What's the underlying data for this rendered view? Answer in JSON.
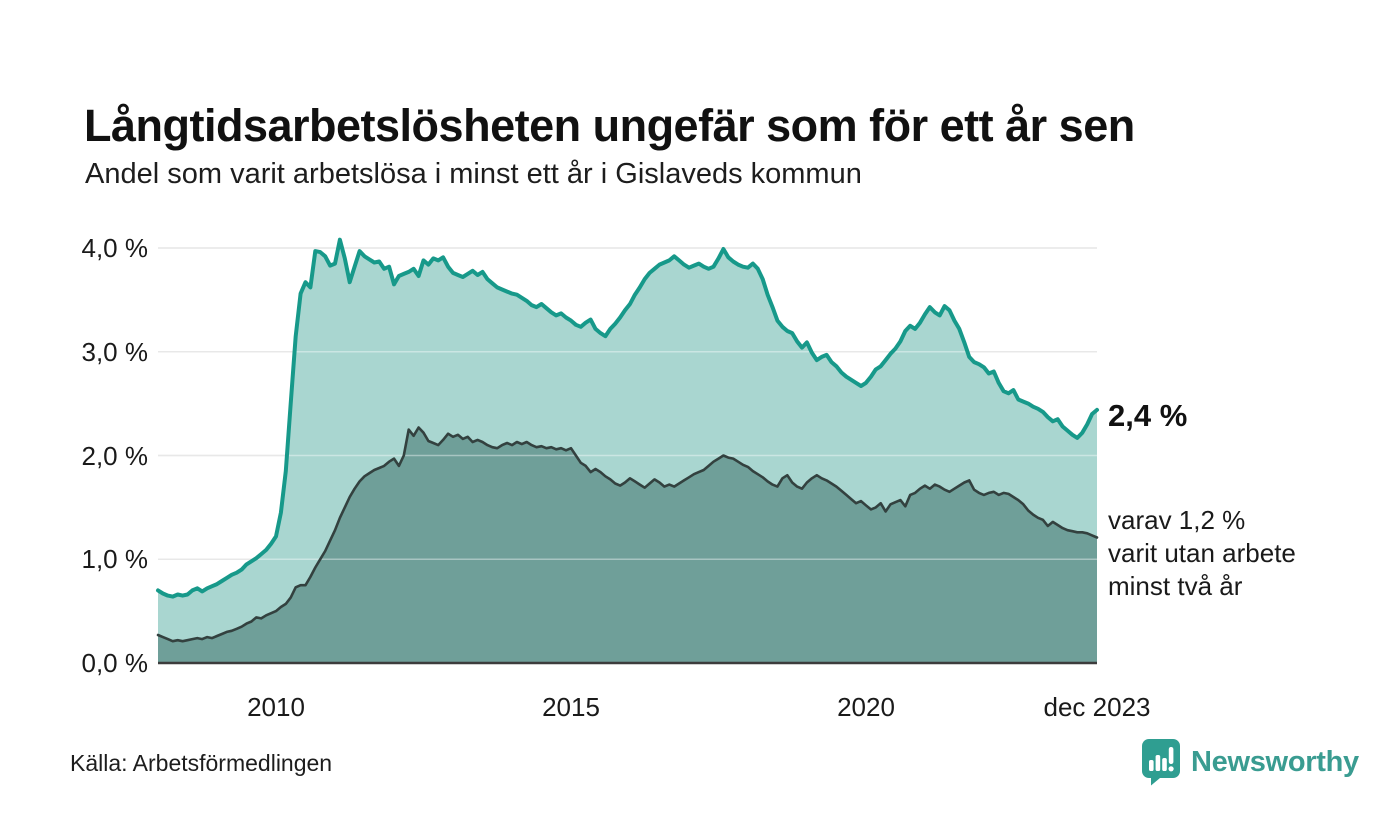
{
  "header": {
    "title": "Långtidsarbetslösheten ungefär som för ett år sen",
    "subtitle": "Andel som varit arbetslösa i minst ett år i Gislaveds kommun"
  },
  "annotations": {
    "end_value": "2,4 %",
    "sub_line1": "varav 1,2 %",
    "sub_line2": "varit utan arbete",
    "sub_line3": "minst två år"
  },
  "footer": {
    "source": "Källa: Arbetsförmedlingen",
    "logo_text": "Newsworthy",
    "logo_color": "#2f9e91"
  },
  "chart_data": {
    "type": "area",
    "title": "Långtidsarbetslösheten ungefär som för ett år sen",
    "subtitle": "Andel som varit arbetslösa i minst ett år i Gislaveds kommun",
    "unit": "%",
    "x_start_year": 2008,
    "points_per_year": 12,
    "x_end_label": "dec 2023",
    "ylim": [
      0,
      4.3
    ],
    "grid": true,
    "colors": {
      "line_one_year": "#17998a",
      "fill_one_year": "#a9d6d0",
      "line_two_years": "#33413f",
      "fill_two_years": "#6f9f99",
      "gridline": "#d9d9d9",
      "axis": "#3c3c3c"
    },
    "y_ticks": [
      {
        "label": "0,0 %",
        "value": 0
      },
      {
        "label": "1,0 %",
        "value": 1
      },
      {
        "label": "2,0 %",
        "value": 2
      },
      {
        "label": "3,0 %",
        "value": 3
      },
      {
        "label": "4,0 %",
        "value": 4
      }
    ],
    "x_ticks": [
      {
        "label": "2010",
        "year": 2010
      },
      {
        "label": "2015",
        "year": 2015
      },
      {
        "label": "2020",
        "year": 2020
      },
      {
        "label": "dec 2023",
        "year": 2023.9167
      }
    ],
    "series": [
      {
        "name": "Andel som varit arbetslösa i minst ett år",
        "end_value_pct": 2.4,
        "values": [
          0.7,
          0.67,
          0.65,
          0.64,
          0.66,
          0.65,
          0.66,
          0.7,
          0.72,
          0.69,
          0.72,
          0.74,
          0.76,
          0.79,
          0.82,
          0.85,
          0.87,
          0.9,
          0.95,
          0.98,
          1.01,
          1.05,
          1.09,
          1.15,
          1.22,
          1.45,
          1.85,
          2.5,
          3.15,
          3.56,
          3.67,
          3.62,
          3.97,
          3.96,
          3.92,
          3.83,
          3.85,
          4.08,
          3.9,
          3.67,
          3.82,
          3.97,
          3.92,
          3.89,
          3.86,
          3.87,
          3.8,
          3.82,
          3.65,
          3.73,
          3.75,
          3.77,
          3.8,
          3.73,
          3.88,
          3.84,
          3.9,
          3.88,
          3.91,
          3.82,
          3.76,
          3.74,
          3.72,
          3.75,
          3.78,
          3.74,
          3.77,
          3.7,
          3.66,
          3.62,
          3.6,
          3.58,
          3.56,
          3.55,
          3.52,
          3.49,
          3.45,
          3.43,
          3.46,
          3.42,
          3.38,
          3.35,
          3.37,
          3.33,
          3.3,
          3.26,
          3.24,
          3.28,
          3.31,
          3.22,
          3.18,
          3.15,
          3.22,
          3.27,
          3.33,
          3.4,
          3.46,
          3.55,
          3.62,
          3.7,
          3.76,
          3.8,
          3.84,
          3.86,
          3.88,
          3.92,
          3.88,
          3.84,
          3.81,
          3.83,
          3.85,
          3.82,
          3.8,
          3.82,
          3.9,
          3.99,
          3.91,
          3.87,
          3.84,
          3.82,
          3.81,
          3.85,
          3.8,
          3.7,
          3.55,
          3.43,
          3.3,
          3.24,
          3.2,
          3.18,
          3.1,
          3.04,
          3.09,
          2.99,
          2.92,
          2.95,
          2.97,
          2.9,
          2.86,
          2.8,
          2.76,
          2.73,
          2.7,
          2.67,
          2.7,
          2.76,
          2.83,
          2.86,
          2.92,
          2.98,
          3.03,
          3.1,
          3.2,
          3.25,
          3.22,
          3.28,
          3.36,
          3.43,
          3.38,
          3.35,
          3.44,
          3.4,
          3.3,
          3.22,
          3.09,
          2.95,
          2.9,
          2.88,
          2.85,
          2.79,
          2.81,
          2.7,
          2.62,
          2.6,
          2.63,
          2.54,
          2.52,
          2.5,
          2.47,
          2.45,
          2.42,
          2.37,
          2.33,
          2.35,
          2.28,
          2.24,
          2.2,
          2.17,
          2.22,
          2.3,
          2.4,
          2.44
        ]
      },
      {
        "name": "varav varit utan arbete minst två år",
        "end_value_pct": 1.2,
        "values": [
          0.27,
          0.25,
          0.23,
          0.21,
          0.22,
          0.21,
          0.22,
          0.23,
          0.24,
          0.23,
          0.25,
          0.24,
          0.26,
          0.28,
          0.3,
          0.31,
          0.33,
          0.35,
          0.38,
          0.4,
          0.44,
          0.43,
          0.46,
          0.48,
          0.5,
          0.54,
          0.57,
          0.63,
          0.73,
          0.75,
          0.75,
          0.83,
          0.92,
          1.0,
          1.08,
          1.18,
          1.28,
          1.4,
          1.5,
          1.6,
          1.68,
          1.75,
          1.8,
          1.83,
          1.86,
          1.88,
          1.9,
          1.94,
          1.97,
          1.9,
          2.0,
          2.25,
          2.19,
          2.27,
          2.22,
          2.14,
          2.12,
          2.1,
          2.15,
          2.21,
          2.18,
          2.2,
          2.16,
          2.18,
          2.13,
          2.15,
          2.13,
          2.1,
          2.08,
          2.07,
          2.1,
          2.12,
          2.1,
          2.13,
          2.11,
          2.13,
          2.1,
          2.08,
          2.09,
          2.07,
          2.08,
          2.06,
          2.07,
          2.05,
          2.07,
          2.0,
          1.93,
          1.9,
          1.84,
          1.87,
          1.84,
          1.8,
          1.77,
          1.73,
          1.71,
          1.74,
          1.78,
          1.75,
          1.72,
          1.69,
          1.73,
          1.77,
          1.74,
          1.7,
          1.72,
          1.7,
          1.73,
          1.76,
          1.79,
          1.82,
          1.84,
          1.86,
          1.9,
          1.94,
          1.97,
          2.0,
          1.98,
          1.97,
          1.94,
          1.91,
          1.89,
          1.85,
          1.82,
          1.79,
          1.75,
          1.72,
          1.7,
          1.78,
          1.81,
          1.74,
          1.7,
          1.68,
          1.74,
          1.78,
          1.81,
          1.78,
          1.76,
          1.73,
          1.7,
          1.66,
          1.62,
          1.58,
          1.54,
          1.56,
          1.52,
          1.48,
          1.5,
          1.54,
          1.46,
          1.53,
          1.55,
          1.57,
          1.51,
          1.62,
          1.64,
          1.68,
          1.71,
          1.68,
          1.72,
          1.7,
          1.67,
          1.65,
          1.68,
          1.71,
          1.74,
          1.76,
          1.67,
          1.64,
          1.62,
          1.64,
          1.65,
          1.62,
          1.64,
          1.63,
          1.6,
          1.57,
          1.53,
          1.47,
          1.43,
          1.4,
          1.38,
          1.32,
          1.36,
          1.33,
          1.3,
          1.28,
          1.27,
          1.26,
          1.26,
          1.25,
          1.23,
          1.21
        ]
      }
    ]
  }
}
